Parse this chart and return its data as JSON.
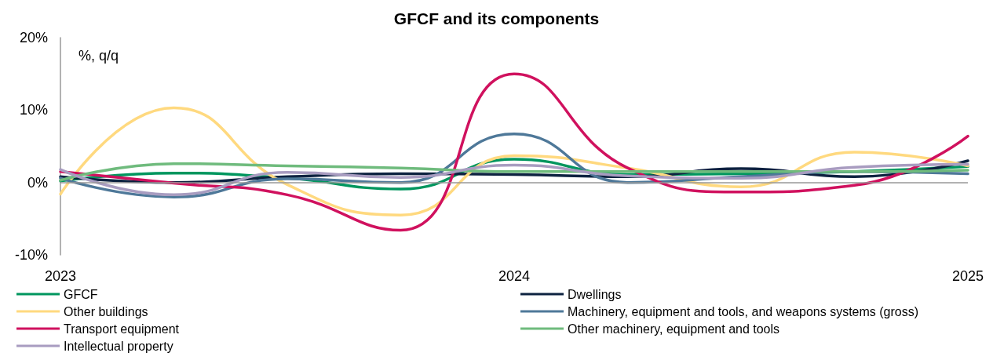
{
  "chart_data": {
    "type": "line",
    "title": "GFCF and its components",
    "ylabel": "%, q/q",
    "categories": [
      "2023",
      null,
      null,
      null,
      "2024",
      null,
      null,
      null,
      "2025"
    ],
    "ylim": [
      -10,
      20
    ],
    "yticks": [
      {
        "value": -10,
        "label": "-10%"
      },
      {
        "value": 0,
        "label": "0%"
      },
      {
        "value": 10,
        "label": "10%"
      },
      {
        "value": 20,
        "label": "20%"
      }
    ],
    "grid": false,
    "ref_lines": [
      {
        "axis": "y",
        "value": 0,
        "color": "#999999"
      }
    ],
    "legend": "bottom",
    "marker": "none",
    "line_style": "solid",
    "series": [
      {
        "name": "GFCF",
        "color": "#00965e",
        "values": [
          0.2,
          1.3,
          0.6,
          -0.9,
          3.2,
          1.1,
          1.2,
          1.5,
          2.2
        ]
      },
      {
        "name": "Dwellings",
        "color": "#0d2240",
        "values": [
          0.8,
          0.0,
          0.8,
          1.2,
          1.1,
          0.8,
          1.9,
          0.8,
          3.0
        ]
      },
      {
        "name": "Other buildings",
        "color": "#ffd97f",
        "values": [
          -1.6,
          10.3,
          -0.3,
          -4.5,
          3.7,
          2.0,
          -0.6,
          4.2,
          2.3
        ]
      },
      {
        "name": "Machinery, equipment and tools, and weapons systems (gross)",
        "color": "#4e7899",
        "values": [
          0.6,
          -2.0,
          0.5,
          0.0,
          6.7,
          0.0,
          0.8,
          1.5,
          1.2
        ]
      },
      {
        "name": "Transport equipment",
        "color": "#d0115e",
        "values": [
          1.5,
          -0.1,
          -1.7,
          -6.6,
          15.0,
          2.0,
          -1.3,
          -0.4,
          6.4
        ]
      },
      {
        "name": "Other machinery, equipment and tools",
        "color": "#6fbb7d",
        "values": [
          0.3,
          2.6,
          2.3,
          2.0,
          1.5,
          1.5,
          1.5,
          1.5,
          1.7
        ]
      },
      {
        "name": "Intellectual property",
        "color": "#a89cc0",
        "values": [
          1.8,
          -1.7,
          1.4,
          0.7,
          2.4,
          0.9,
          0.6,
          2.1,
          2.5
        ]
      }
    ]
  }
}
